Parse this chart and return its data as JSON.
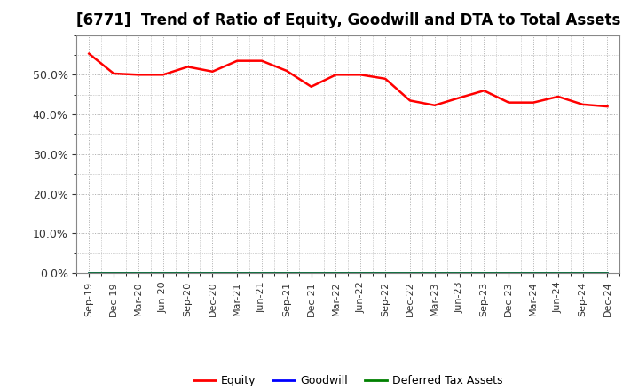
{
  "title": "[6771]  Trend of Ratio of Equity, Goodwill and DTA to Total Assets",
  "x_labels": [
    "Sep-19",
    "Dec-19",
    "Mar-20",
    "Jun-20",
    "Sep-20",
    "Dec-20",
    "Mar-21",
    "Jun-21",
    "Sep-21",
    "Dec-21",
    "Mar-22",
    "Jun-22",
    "Sep-22",
    "Dec-22",
    "Mar-23",
    "Jun-23",
    "Sep-23",
    "Dec-23",
    "Mar-24",
    "Jun-24",
    "Sep-24",
    "Dec-24"
  ],
  "equity": [
    0.553,
    0.503,
    0.5,
    0.5,
    0.52,
    0.508,
    0.535,
    0.535,
    0.51,
    0.47,
    0.5,
    0.5,
    0.49,
    0.435,
    0.423,
    0.442,
    0.46,
    0.43,
    0.43,
    0.445,
    0.425,
    0.42
  ],
  "goodwill": [
    0.0,
    0.0,
    0.0,
    0.0,
    0.0,
    0.0,
    0.0,
    0.0,
    0.0,
    0.0,
    0.0,
    0.0,
    0.0,
    0.0,
    0.0,
    0.0,
    0.0,
    0.0,
    0.0,
    0.0,
    0.0,
    0.0
  ],
  "dta": [
    0.0,
    0.0,
    0.0,
    0.0,
    0.0,
    0.0,
    0.0,
    0.0,
    0.0,
    0.0,
    0.0,
    0.0,
    0.0,
    0.0,
    0.0,
    0.0,
    0.0,
    0.0,
    0.0,
    0.0,
    0.0,
    0.0
  ],
  "equity_color": "#ff0000",
  "goodwill_color": "#0000ff",
  "dta_color": "#008000",
  "ylim": [
    0.0,
    0.6
  ],
  "yticks": [
    0.0,
    0.1,
    0.2,
    0.3,
    0.4,
    0.5
  ],
  "background_color": "#ffffff",
  "grid_color": "#aaaaaa",
  "title_fontsize": 12,
  "tick_fontsize": 9,
  "xtick_fontsize": 8,
  "legend_labels": [
    "Equity",
    "Goodwill",
    "Deferred Tax Assets"
  ],
  "legend_colors": [
    "#ff0000",
    "#0000ff",
    "#008000"
  ]
}
